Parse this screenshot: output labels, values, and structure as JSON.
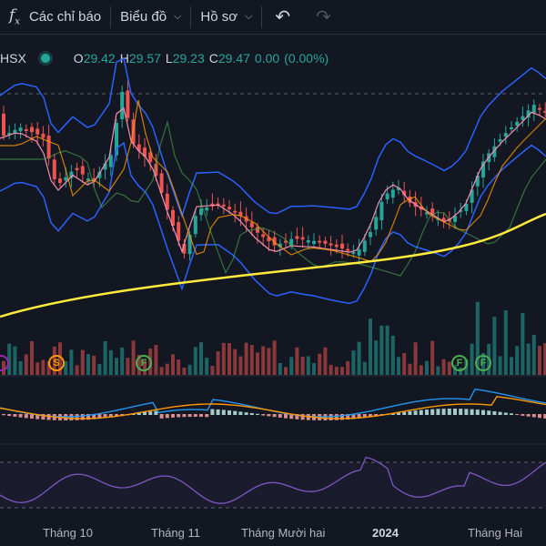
{
  "toolbar": {
    "indicators_icon": "fx-icon",
    "indicators_label": "Các chỉ báo",
    "charts_label": "Biểu đồ",
    "profiles_label": "Hồ sơ",
    "undo_icon": "undo-icon",
    "redo_icon": "redo-icon"
  },
  "legend": {
    "symbol": "HSX",
    "open_label": "O",
    "open": "29.42",
    "high_label": "H",
    "high": "29.57",
    "low_label": "L",
    "low": "29.23",
    "close_label": "C",
    "close": "29.47",
    "change": "0.00",
    "change_pct": "(0.00%)",
    "status_color": "#26a69a"
  },
  "time_axis": [
    "Tháng 10",
    "Tháng 11",
    "Tháng Mười hai",
    "2024",
    "Tháng Hai"
  ],
  "event_markers": [
    {
      "letter": "S",
      "color": "#ff9800"
    },
    {
      "letter": "F",
      "color": "#4caf50"
    },
    {
      "letter": "F",
      "color": "#4caf50"
    },
    {
      "letter": "F",
      "color": "#4caf50"
    }
  ],
  "colors": {
    "up": "#26a69a",
    "down": "#ef5350",
    "bollinger": "#2962ff",
    "ma_long": "#ffeb3b",
    "rsi": "#7e57c2",
    "background": "#131722"
  }
}
